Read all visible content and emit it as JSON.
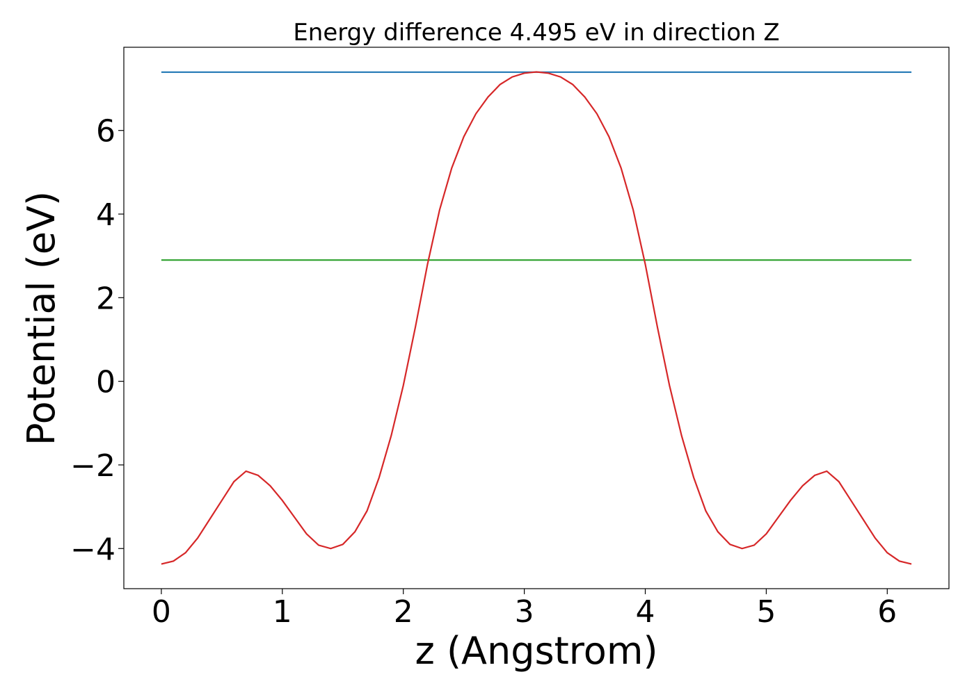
{
  "chart_data": {
    "type": "line",
    "title": "Energy difference 4.495 eV in direction Z",
    "xlabel": "z (Angstrom)",
    "ylabel": "Potential (eV)",
    "xlim": [
      -0.31,
      6.51
    ],
    "ylim": [
      -4.96,
      7.99
    ],
    "xticks": [
      0,
      1,
      2,
      3,
      4,
      5,
      6
    ],
    "yticks": [
      {
        "value": -4,
        "label": "−4"
      },
      {
        "value": -2,
        "label": "−2"
      },
      0,
      2,
      4,
      6
    ],
    "series": [
      {
        "color": "#1f77b4",
        "x": [
          0,
          6.2
        ],
        "values": [
          7.395,
          7.395
        ]
      },
      {
        "color": "#2ca02c",
        "x": [
          0,
          6.2
        ],
        "values": [
          2.9,
          2.9
        ]
      },
      {
        "color": "#d62728",
        "x": [
          0,
          0.1,
          0.2,
          0.3,
          0.4,
          0.5,
          0.6,
          0.7,
          0.8,
          0.9,
          1.0,
          1.1,
          1.2,
          1.3,
          1.4,
          1.5,
          1.6,
          1.7,
          1.8,
          1.9,
          2.0,
          2.1,
          2.2,
          2.3,
          2.4,
          2.5,
          2.6,
          2.7,
          2.8,
          2.9,
          3.0,
          3.1,
          3.2,
          3.3,
          3.4,
          3.5,
          3.6,
          3.7,
          3.8,
          3.9,
          4.0,
          4.1,
          4.2,
          4.3,
          4.4,
          4.5,
          4.6,
          4.7,
          4.8,
          4.9,
          5.0,
          5.1,
          5.2,
          5.3,
          5.4,
          5.5,
          5.6,
          5.7,
          5.8,
          5.9,
          6.0,
          6.1,
          6.2
        ],
        "values": [
          -4.37,
          -4.3,
          -4.1,
          -3.75,
          -3.3,
          -2.85,
          -2.4,
          -2.15,
          -2.25,
          -2.5,
          -2.85,
          -3.25,
          -3.65,
          -3.92,
          -4.0,
          -3.9,
          -3.6,
          -3.1,
          -2.3,
          -1.3,
          -0.1,
          1.3,
          2.8,
          4.1,
          5.1,
          5.85,
          6.4,
          6.8,
          7.1,
          7.28,
          7.37,
          7.4,
          7.37,
          7.28,
          7.1,
          6.8,
          6.4,
          5.85,
          5.1,
          4.1,
          2.8,
          1.3,
          -0.1,
          -1.3,
          -2.3,
          -3.1,
          -3.6,
          -3.9,
          -4.0,
          -3.92,
          -3.65,
          -3.25,
          -2.85,
          -2.5,
          -2.25,
          -2.15,
          -2.4,
          -2.85,
          -3.3,
          -3.75,
          -4.1,
          -4.3,
          -4.37
        ]
      }
    ]
  }
}
